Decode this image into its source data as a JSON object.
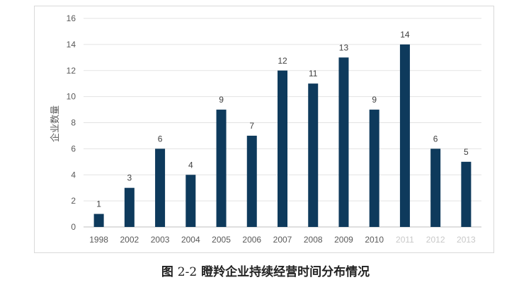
{
  "chart_data": {
    "type": "bar",
    "title": "",
    "xlabel": "",
    "ylabel": "企业数量",
    "categories": [
      "1998",
      "2002",
      "2003",
      "2004",
      "2005",
      "2006",
      "2007",
      "2008",
      "2009",
      "2010",
      "2011",
      "2012",
      "2013"
    ],
    "values": [
      1,
      3,
      6,
      4,
      9,
      7,
      12,
      11,
      13,
      9,
      14,
      6,
      5
    ],
    "ylim": [
      0,
      16
    ],
    "yticks": [
      0,
      2,
      4,
      6,
      8,
      10,
      12,
      14,
      16
    ],
    "grid": true,
    "bar_color": "#0e3a5c",
    "data_labels": true
  },
  "caption": {
    "figure": "图",
    "number": "2-2",
    "text": "瞪羚企业持续经营时间分布情况"
  }
}
